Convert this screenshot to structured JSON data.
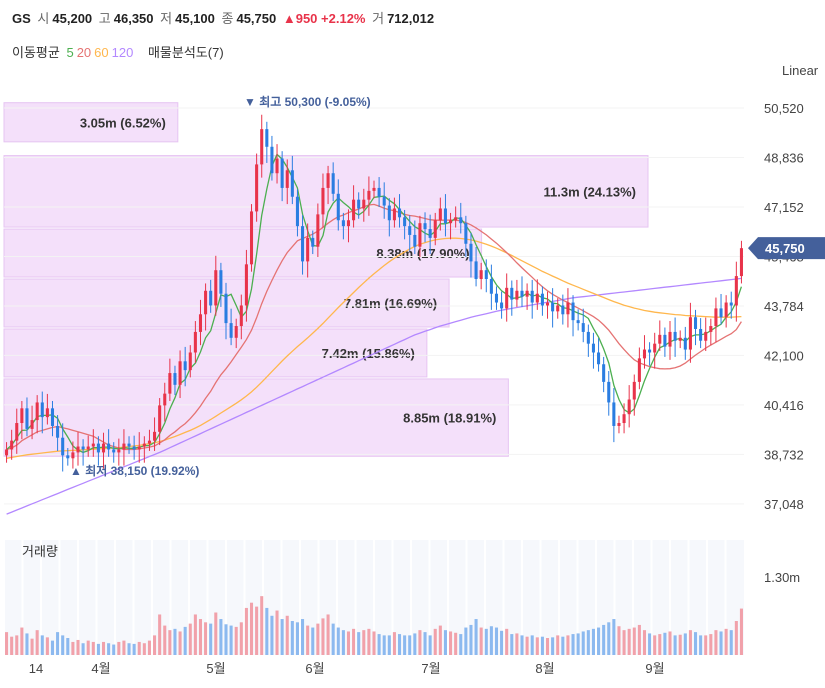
{
  "header": {
    "ticker": "GS",
    "open_label": "시",
    "open": "45,200",
    "high_label": "고",
    "high": "46,350",
    "low_label": "저",
    "low": "45,100",
    "close_label": "종",
    "close": "45,750",
    "change": "▲950 +2.12%",
    "volume_label": "거",
    "volume": "712,012"
  },
  "indicators": {
    "ma_label": "이동평균",
    "ma_periods": [
      "5",
      "20",
      "60",
      "120"
    ],
    "ma_colors": [
      "#4caf50",
      "#e57373",
      "#ffb74d",
      "#b388ff"
    ],
    "profile_label": "매물분석도(7)"
  },
  "scale_label": "Linear",
  "price_axis": [
    "50,520",
    "48,836",
    "47,152",
    "45,468",
    "43,784",
    "42,100",
    "40,416",
    "38,732",
    "37,048"
  ],
  "current_price": "45,750",
  "volume_title": "거래량",
  "volume_axis": "1.30m",
  "x_labels": [
    "14",
    "4월",
    "5월",
    "6월",
    "7월",
    "8월",
    "9월"
  ],
  "high_marker": "▼ 최고 50,300 (-9.05%)",
  "low_marker": "▲ 최저 38,150 (19.92%)",
  "colors": {
    "up": "#e8334a",
    "down": "#2a7de1",
    "band": "#f4e0fa",
    "badge": "#44609b"
  },
  "chart_data": {
    "type": "candlestick",
    "price_range": [
      36500,
      51200
    ],
    "volume_profile": [
      {
        "label": "3.05m (6.52%)",
        "value_m": 3.05,
        "pct": 6.52,
        "band": [
          49300,
          50700
        ]
      },
      {
        "label": "11.3m (24.13%)",
        "value_m": 11.3,
        "pct": 24.13,
        "band": [
          46400,
          48900
        ]
      },
      {
        "label": "8.38m (17.90%)",
        "value_m": 8.38,
        "pct": 17.9,
        "band": [
          44700,
          46400
        ]
      },
      {
        "label": "7.81m (16.69%)",
        "value_m": 7.81,
        "pct": 16.69,
        "band": [
          43000,
          44700
        ]
      },
      {
        "label": "7.42m (15.86%)",
        "value_m": 7.42,
        "pct": 15.86,
        "band": [
          41300,
          43000
        ]
      },
      {
        "label": "8.85m (18.91%)",
        "value_m": 8.85,
        "pct": 18.91,
        "band": [
          38600,
          41300
        ]
      }
    ],
    "closes": [
      38900,
      39200,
      39800,
      40300,
      39600,
      39900,
      40500,
      40000,
      40300,
      39700,
      39300,
      38700,
      38600,
      38800,
      39000,
      38900,
      39000,
      39100,
      38800,
      39100,
      38900,
      38800,
      38900,
      39100,
      39000,
      38900,
      39000,
      39100,
      39200,
      39500,
      40400,
      40800,
      41500,
      41100,
      41900,
      41600,
      42200,
      42900,
      43500,
      44300,
      43800,
      45000,
      44200,
      43200,
      42700,
      43100,
      43800,
      45200,
      47000,
      48600,
      49800,
      49200,
      48300,
      48800,
      47800,
      48400,
      47500,
      46500,
      45300,
      46100,
      45800,
      46900,
      47800,
      48300,
      47600,
      46700,
      46500,
      46700,
      47400,
      47100,
      47400,
      47700,
      47800,
      47500,
      47200,
      46700,
      47100,
      46800,
      46500,
      46200,
      45800,
      46600,
      46400,
      46100,
      46700,
      47100,
      46600,
      46700,
      46800,
      46600,
      45900,
      45300,
      44700,
      45000,
      44700,
      44200,
      43900,
      43700,
      44400,
      44000,
      44300,
      44100,
      44300,
      43900,
      44200,
      43800,
      43900,
      43600,
      43800,
      43500,
      43900,
      43300,
      43200,
      42900,
      42500,
      42200,
      41800,
      41200,
      40500,
      39700,
      39800,
      40100,
      40600,
      41200,
      42000,
      42300,
      42200,
      42500,
      42800,
      42400,
      42900,
      42600,
      42700,
      42300,
      43400,
      43000,
      42600,
      42900,
      43100,
      43700,
      43400,
      43900,
      43800,
      44800,
      45750
    ],
    "ma5": [
      38900,
      39050,
      39300,
      39550,
      39560,
      39760,
      40020,
      40060,
      40060,
      40080,
      39960,
      39600,
      39320,
      39020,
      38880,
      38800,
      38860,
      38960,
      38960,
      38980,
      38980,
      38940,
      38920,
      38960,
      38940,
      38940,
      38980,
      39020,
      39040,
      39140,
      39440,
      39800,
      40280,
      40660,
      41140,
      41280,
      41660,
      41840,
      42220,
      42700,
      42940,
      43540,
      44160,
      44100,
      44180,
      43800,
      43400,
      43600,
      44360,
      45540,
      46860,
      47760,
      48540,
      48940,
      48780,
      48500,
      48160,
      47800,
      46900,
      46340,
      45840,
      45820,
      46180,
      46980,
      47280,
      47460,
      47300,
      47160,
      46980,
      46880,
      47000,
      47220,
      47480,
      47500,
      47520,
      47380,
      47260,
      47060,
      46860,
      46660,
      46480,
      46380,
      46260,
      46180,
      46320,
      46580,
      46580,
      46640,
      46780,
      46760,
      46520,
      46260,
      45860,
      45500,
      45120,
      44780,
      44500,
      44300,
      44180,
      44040,
      44060,
      44100,
      44220,
      44120,
      44160,
      44060,
      44020,
      43880,
      43860,
      43720,
      43700,
      43620,
      43540,
      43480,
      43360,
      43020,
      42720,
      42320,
      41840,
      41080,
      40600,
      40260,
      40140,
      40280,
      40740,
      41240,
      41660,
      42040,
      42360,
      42440,
      42560,
      42640,
      42680,
      42580,
      42740,
      42800,
      42800,
      42840,
      42940,
      43060,
      43160,
      43400,
      43580,
      43920,
      44440
    ],
    "ma20": [
      38900,
      38950,
      39050,
      39200,
      39300,
      39400,
      39500,
      39550,
      39600,
      39650,
      39680,
      39640,
      39600,
      39550,
      39500,
      39450,
      39400,
      39350,
      39250,
      39150,
      39050,
      39000,
      38950,
      38900,
      38900,
      38900,
      38920,
      38950,
      38980,
      39020,
      39120,
      39230,
      39380,
      39500,
      39650,
      39780,
      39950,
      40150,
      40380,
      40640,
      40880,
      41180,
      41440,
      41650,
      41880,
      42130,
      42380,
      42640,
      42960,
      43380,
      43860,
      44280,
      44650,
      45000,
      45320,
      45600,
      45800,
      46000,
      46080,
      46150,
      46230,
      46330,
      46460,
      46600,
      46720,
      46820,
      46880,
      46960,
      47020,
      47080,
      47160,
      47220,
      47240,
      47180,
      47110,
      47060,
      47020,
      46960,
      46900,
      46860,
      46840,
      46800,
      46760,
      46720,
      46700,
      46700,
      46700,
      46710,
      46700,
      46680,
      46620,
      46540,
      46440,
      46320,
      46200,
      46060,
      45920,
      45760,
      45600,
      45430,
      45250,
      45080,
      44920,
      44760,
      44590,
      44440,
      44300,
      44180,
      44080,
      43980,
      43900,
      43800,
      43710,
      43620,
      43520,
      43420,
      43300,
      43140,
      42960,
      42730,
      42500,
      42300,
      42110,
      41950,
      41850,
      41780,
      41720,
      41680,
      41650,
      41640,
      41650,
      41680,
      41740,
      41840,
      41980,
      42110,
      42230,
      42350,
      42450,
      42550,
      42650,
      42750,
      42840,
      42980,
      43250
    ],
    "ma60": [
      38600,
      38630,
      38660,
      38690,
      38720,
      38740,
      38760,
      38780,
      38800,
      38820,
      38840,
      38850,
      38860,
      38870,
      38880,
      38890,
      38900,
      38910,
      38920,
      38930,
      38940,
      38950,
      38960,
      38980,
      39000,
      39020,
      39040,
      39070,
      39100,
      39130,
      39170,
      39220,
      39280,
      39340,
      39410,
      39480,
      39550,
      39630,
      39720,
      39820,
      39920,
      40030,
      40140,
      40250,
      40360,
      40470,
      40590,
      40720,
      40860,
      41020,
      41190,
      41370,
      41550,
      41730,
      41910,
      42080,
      42240,
      42400,
      42550,
      42700,
      42860,
      43020,
      43190,
      43370,
      43550,
      43730,
      43900,
      44070,
      44240,
      44410,
      44570,
      44730,
      44880,
      45020,
      45160,
      45290,
      45410,
      45520,
      45620,
      45720,
      45810,
      45880,
      45940,
      45990,
      46030,
      46060,
      46080,
      46090,
      46090,
      46080,
      46060,
      46030,
      45990,
      45940,
      45880,
      45820,
      45750,
      45670,
      45590,
      45500,
      45410,
      45320,
      45230,
      45140,
      45050,
      44960,
      44880,
      44800,
      44720,
      44640,
      44560,
      44490,
      44420,
      44350,
      44280,
      44210,
      44140,
      44070,
      44000,
      43930,
      43870,
      43810,
      43760,
      43710,
      43670,
      43630,
      43600,
      43570,
      43550,
      43530,
      43510,
      43490,
      43480,
      43460,
      43450,
      43440,
      43430,
      43420,
      43410,
      43400,
      43400,
      43400,
      43400,
      43410,
      43420
    ],
    "ma120": [
      36700,
      36770,
      36840,
      36910,
      36980,
      37050,
      37120,
      37190,
      37260,
      37330,
      37400,
      37470,
      37540,
      37610,
      37680,
      37750,
      37820,
      37890,
      37960,
      38030,
      38100,
      38170,
      38240,
      38310,
      38380,
      38450,
      38520,
      38590,
      38660,
      38730,
      38800,
      38880,
      38960,
      39040,
      39120,
      39200,
      39280,
      39360,
      39440,
      39520,
      39600,
      39680,
      39760,
      39840,
      39920,
      40000,
      40080,
      40160,
      40240,
      40320,
      40400,
      40480,
      40560,
      40640,
      40720,
      40800,
      40880,
      40960,
      41040,
      41120,
      41200,
      41280,
      41360,
      41440,
      41520,
      41600,
      41680,
      41760,
      41840,
      41920,
      42000,
      42080,
      42160,
      42240,
      42320,
      42400,
      42480,
      42560,
      42640,
      42720,
      42800,
      42860,
      42920,
      42980,
      43040,
      43100,
      43150,
      43200,
      43250,
      43300,
      43350,
      43400,
      43440,
      43480,
      43520,
      43560,
      43600,
      43640,
      43670,
      43700,
      43730,
      43760,
      43790,
      43820,
      43850,
      43880,
      43910,
      43940,
      43970,
      44000,
      44030,
      44060,
      44080,
      44100,
      44120,
      44140,
      44160,
      44180,
      44200,
      44220,
      44240,
      44260,
      44280,
      44300,
      44320,
      44340,
      44360,
      44380,
      44400,
      44420,
      44440,
      44460,
      44480,
      44500,
      44520,
      44540,
      44560,
      44580,
      44600,
      44620,
      44640,
      44660,
      44680,
      44700,
      44720
    ],
    "volumes_m": [
      0.35,
      0.28,
      0.3,
      0.42,
      0.33,
      0.25,
      0.38,
      0.3,
      0.27,
      0.22,
      0.35,
      0.3,
      0.26,
      0.2,
      0.23,
      0.18,
      0.22,
      0.2,
      0.17,
      0.2,
      0.18,
      0.16,
      0.2,
      0.22,
      0.18,
      0.17,
      0.2,
      0.18,
      0.22,
      0.3,
      0.62,
      0.45,
      0.38,
      0.4,
      0.36,
      0.43,
      0.48,
      0.62,
      0.55,
      0.5,
      0.48,
      0.65,
      0.55,
      0.47,
      0.45,
      0.43,
      0.5,
      0.72,
      0.8,
      0.74,
      0.9,
      0.72,
      0.6,
      0.68,
      0.55,
      0.6,
      0.52,
      0.5,
      0.55,
      0.45,
      0.42,
      0.48,
      0.56,
      0.62,
      0.48,
      0.42,
      0.38,
      0.36,
      0.4,
      0.35,
      0.38,
      0.4,
      0.36,
      0.32,
      0.3,
      0.3,
      0.35,
      0.32,
      0.3,
      0.3,
      0.33,
      0.38,
      0.35,
      0.3,
      0.4,
      0.45,
      0.38,
      0.36,
      0.34,
      0.32,
      0.42,
      0.46,
      0.55,
      0.42,
      0.4,
      0.44,
      0.42,
      0.37,
      0.4,
      0.32,
      0.33,
      0.3,
      0.28,
      0.3,
      0.27,
      0.28,
      0.26,
      0.27,
      0.3,
      0.28,
      0.3,
      0.32,
      0.33,
      0.36,
      0.38,
      0.4,
      0.42,
      0.46,
      0.5,
      0.55,
      0.44,
      0.38,
      0.4,
      0.42,
      0.46,
      0.38,
      0.33,
      0.3,
      0.32,
      0.34,
      0.36,
      0.3,
      0.31,
      0.33,
      0.38,
      0.35,
      0.3,
      0.3,
      0.32,
      0.38,
      0.36,
      0.4,
      0.38,
      0.52,
      0.71
    ]
  }
}
